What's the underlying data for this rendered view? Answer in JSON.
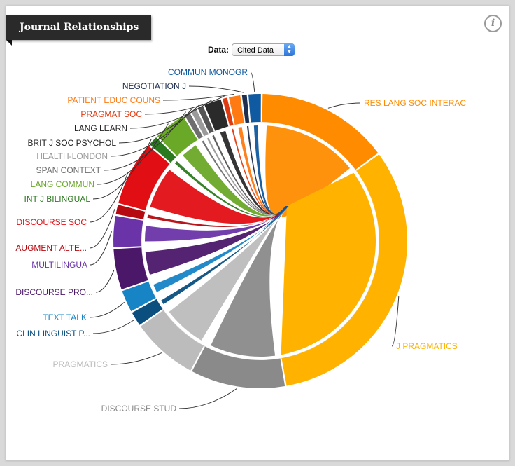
{
  "header": {
    "title": "Journal Relationships",
    "info_icon": "info-icon"
  },
  "controls": {
    "data_label": "Data:",
    "data_select_value": "Cited Data"
  },
  "chart_data": {
    "type": "chord",
    "title": "Journal Relationships",
    "focus": "J PRAGMATICS",
    "journals": [
      {
        "name": "RES LANG SOC INTERAC",
        "value": 14,
        "color": "#ff8c00"
      },
      {
        "name": "J PRAGMATICS",
        "value": 31,
        "color": "#ffb300"
      },
      {
        "name": "DISCOURSE STUD",
        "value": 10,
        "color": "#8a8a8a"
      },
      {
        "name": "PRAGMATICS",
        "value": 7,
        "color": "#bcbcbc"
      },
      {
        "name": "CLIN LINGUIST P...",
        "value": 1.5,
        "color": "#0a4f7e"
      },
      {
        "name": "TEXT TALK",
        "value": 2.3,
        "color": "#1784c6"
      },
      {
        "name": "DISCOURSE PRO...",
        "value": 4.3,
        "color": "#4b1769"
      },
      {
        "name": "MULTILINGUA",
        "value": 3.3,
        "color": "#6a34a8"
      },
      {
        "name": "AUGMENT ALTE...",
        "value": 1.0,
        "color": "#b50a10"
      },
      {
        "name": "DISCOURSE SOC",
        "value": 6.8,
        "color": "#e10f14"
      },
      {
        "name": "INT J BILINGUAL",
        "value": 1.0,
        "color": "#2c7a1f"
      },
      {
        "name": "LANG COMMUN",
        "value": 3.4,
        "color": "#6aa828"
      },
      {
        "name": "SPAN CONTEXT",
        "value": 0.6,
        "color": "#6e6e6e"
      },
      {
        "name": "HEALTH-LONDON",
        "value": 0.6,
        "color": "#9a9a9a"
      },
      {
        "name": "BRIT J SOC PSYCHOL",
        "value": 0.6,
        "color": "#555555"
      },
      {
        "name": "LANG LEARN",
        "value": 1.8,
        "color": "#2a2a2a"
      },
      {
        "name": "PRAGMAT SOC",
        "value": 0.5,
        "color": "#e03a10"
      },
      {
        "name": "PATIENT EDUC COUNS",
        "value": 1.2,
        "color": "#ff7a12"
      },
      {
        "name": "NEGOTIATION J",
        "value": 0.5,
        "color": "#1f2f4f"
      },
      {
        "name": "COMMUN MONOGR",
        "value": 1.3,
        "color": "#0f5aa0"
      }
    ]
  }
}
